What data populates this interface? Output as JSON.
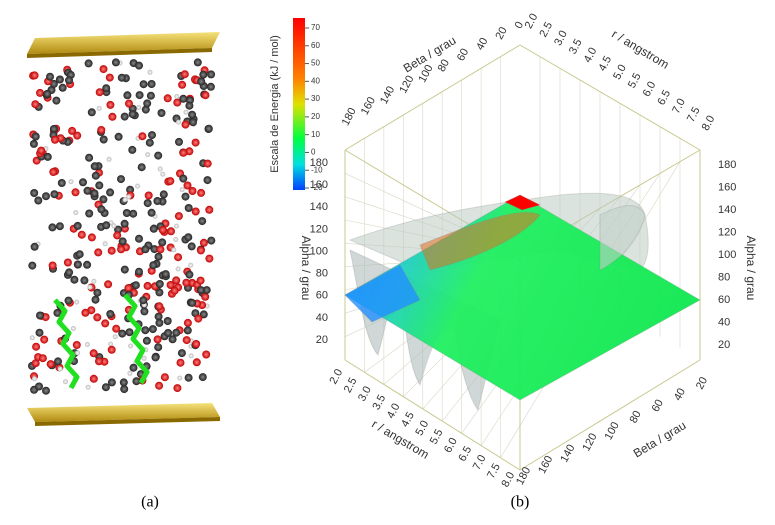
{
  "panel_a": {
    "caption": "(a)"
  },
  "panel_b": {
    "caption": "(b)",
    "colorbar": {
      "title": "Escala de Energia (kJ / mol)",
      "ticks": [
        70,
        60,
        50,
        40,
        30,
        20,
        10,
        0,
        -10,
        -20
      ]
    },
    "axes": {
      "beta_top": {
        "label": "Beta / grau",
        "ticks": [
          "180",
          "160",
          "140",
          "120",
          "100",
          "80",
          "60",
          "40",
          "20",
          "0"
        ]
      },
      "r_top": {
        "label": "r / angstrom",
        "ticks": [
          "2.0",
          "2.5",
          "3.0",
          "3.5",
          "4.0",
          "4.5",
          "5.0",
          "5.5",
          "6.0",
          "6.5",
          "7.0",
          "7.5",
          "8.0"
        ]
      },
      "alpha_left": {
        "label": "Alpha / grau",
        "ticks": [
          "20",
          "40",
          "60",
          "80",
          "100",
          "120",
          "140",
          "160",
          "180"
        ]
      },
      "alpha_right": {
        "label": "Alpha / grau",
        "ticks": [
          "20",
          "40",
          "60",
          "80",
          "100",
          "120",
          "140",
          "160",
          "180"
        ]
      },
      "r_bottom": {
        "label": "r / angstrom",
        "ticks": [
          "2.0",
          "2.5",
          "3.0",
          "3.5",
          "4.0",
          "4.5",
          "5.0",
          "5.5",
          "6.0",
          "6.5",
          "7.0",
          "7.5",
          "8.0"
        ]
      },
      "beta_bottom": {
        "label": "Beta / grau",
        "ticks": [
          "180",
          "160",
          "140",
          "120",
          "100",
          "80",
          "60",
          "40",
          "20"
        ]
      }
    }
  }
}
